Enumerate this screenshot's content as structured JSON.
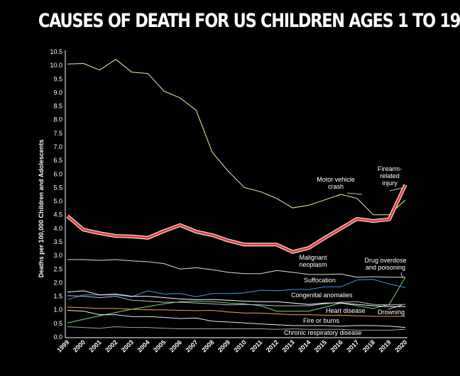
{
  "chart_data": {
    "type": "line",
    "title": "CAUSES OF DEATH  FOR US CHILDREN AGES 1 TO 19",
    "ylabel": "Deaths per 100,000 Children and Adolescents",
    "xlabel": "",
    "ylim": [
      0,
      10.5
    ],
    "yticks": [
      "0.0",
      "0.5",
      "1.0",
      "1.5",
      "2.0",
      "2.5",
      "3.0",
      "3.5",
      "4.0",
      "4.5",
      "5.0",
      "5.5",
      "6.0",
      "6.5",
      "7.0",
      "7.5",
      "8.0",
      "8.5",
      "9.0",
      "9.5",
      "10.0",
      "10.5"
    ],
    "x": [
      "1999",
      "2000",
      "2001",
      "2002",
      "2003",
      "2004",
      "2005",
      "2006",
      "2007",
      "2008",
      "2009",
      "2010",
      "2011",
      "2012",
      "2013",
      "2014",
      "2015",
      "2016",
      "2017",
      "2018",
      "2019",
      "2020"
    ],
    "series": [
      {
        "name": "Motor vehicle crash",
        "label_lines": [
          "Motor vehicle",
          "crash"
        ],
        "color": "#f3eaa6",
        "width": 1,
        "values": [
          10.05,
          10.07,
          9.83,
          10.22,
          9.75,
          9.7,
          9.05,
          8.8,
          8.35,
          6.8,
          6.1,
          5.5,
          5.35,
          5.1,
          4.75,
          4.85,
          5.05,
          5.25,
          5.1,
          4.5,
          4.5,
          5.05
        ]
      },
      {
        "name": "Firearm-related injury",
        "label_lines": [
          "Firearm-",
          "related",
          "injury"
        ],
        "color": "#e63a3a",
        "width": 3,
        "values": [
          4.45,
          3.95,
          3.82,
          3.72,
          3.7,
          3.65,
          3.9,
          4.12,
          3.88,
          3.75,
          3.55,
          3.4,
          3.4,
          3.4,
          3.13,
          3.28,
          3.65,
          4.0,
          4.35,
          4.27,
          4.33,
          5.6
        ]
      },
      {
        "name": "Malignant neoplasm",
        "label_lines": [
          "Malignant",
          "neoplasm"
        ],
        "color": "#dcdcdc",
        "width": 1,
        "values": [
          2.85,
          2.85,
          2.82,
          2.85,
          2.8,
          2.77,
          2.7,
          2.5,
          2.55,
          2.48,
          2.38,
          2.33,
          2.33,
          2.45,
          2.38,
          2.3,
          2.3,
          2.32,
          2.2,
          2.22,
          2.2,
          2.2
        ]
      },
      {
        "name": "Drug overdose and poisoning",
        "label_lines": [
          "Drug overdose",
          "and poisoning"
        ],
        "color": "#7fd47f",
        "width": 1,
        "values": [
          0.52,
          0.65,
          0.78,
          0.9,
          1.02,
          1.12,
          1.22,
          1.3,
          1.32,
          1.3,
          1.25,
          1.22,
          1.15,
          0.95,
          0.95,
          0.95,
          1.1,
          1.25,
          1.15,
          1.05,
          1.2,
          2.2
        ]
      },
      {
        "name": "Suffocation",
        "label_lines": [
          "Suffocation"
        ],
        "color": "#4f8ef0",
        "width": 1,
        "values": [
          1.38,
          1.55,
          1.55,
          1.55,
          1.48,
          1.7,
          1.58,
          1.6,
          1.48,
          1.6,
          1.6,
          1.62,
          1.72,
          1.7,
          1.75,
          1.75,
          1.85,
          1.85,
          2.1,
          2.12,
          1.95,
          1.82
        ]
      },
      {
        "name": "Congenital anomalies",
        "label_lines": [
          "Congenital anomalies"
        ],
        "color": "#ffffff",
        "width": 1,
        "values": [
          1.65,
          1.7,
          1.55,
          1.58,
          1.5,
          1.5,
          1.45,
          1.4,
          1.38,
          1.38,
          1.35,
          1.32,
          1.3,
          1.3,
          1.25,
          1.2,
          1.25,
          1.25,
          1.2,
          1.15,
          1.12,
          1.12
        ]
      },
      {
        "name": "Heart disease",
        "label_lines": [
          "Heart disease"
        ],
        "color": "#f0a050",
        "width": 1,
        "values": [
          1.1,
          1.08,
          1.05,
          1.05,
          1.02,
          1.0,
          1.0,
          0.98,
          0.97,
          0.98,
          0.92,
          0.88,
          0.88,
          0.85,
          0.82,
          0.82,
          0.8,
          0.8,
          0.78,
          0.76,
          0.76,
          0.76
        ]
      },
      {
        "name": "Drowning",
        "label_lines": [
          "Drowning"
        ],
        "color": "#bfbfbf",
        "width": 1,
        "values": [
          1.52,
          1.5,
          1.45,
          1.5,
          1.35,
          1.32,
          1.28,
          1.28,
          1.25,
          1.22,
          1.18,
          1.2,
          1.18,
          1.15,
          1.15,
          1.15,
          1.22,
          1.28,
          1.3,
          1.2,
          1.18,
          1.2
        ]
      },
      {
        "name": "Fire or burns",
        "label_lines": [
          "Fire or burns"
        ],
        "color": "#e8e8e8",
        "width": 1,
        "values": [
          0.98,
          0.95,
          0.82,
          0.82,
          0.75,
          0.75,
          0.72,
          0.68,
          0.7,
          0.58,
          0.55,
          0.52,
          0.48,
          0.45,
          0.42,
          0.42,
          0.42,
          0.4,
          0.42,
          0.42,
          0.4,
          0.35
        ]
      },
      {
        "name": "Chronic respiratory disease",
        "label_lines": [
          "Chronic respiratory disease"
        ],
        "color": "#a0a0a0",
        "width": 1,
        "values": [
          0.38,
          0.35,
          0.32,
          0.38,
          0.35,
          0.35,
          0.32,
          0.3,
          0.3,
          0.3,
          0.3,
          0.3,
          0.3,
          0.28,
          0.3,
          0.28,
          0.28,
          0.28,
          0.25,
          0.25,
          0.25,
          0.28
        ]
      }
    ],
    "grid": false,
    "legend": "inline labels"
  }
}
